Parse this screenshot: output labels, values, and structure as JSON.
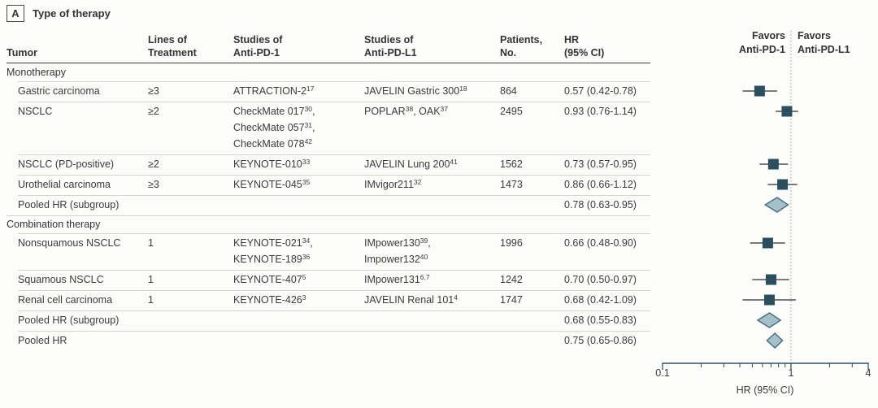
{
  "panel": {
    "label": "A",
    "title": "Type of therapy"
  },
  "table": {
    "headers": {
      "tumor": "Tumor",
      "lines_of_treatment": [
        "Lines of",
        "Treatment"
      ],
      "studies_pd1": [
        "Studies of",
        "Anti-PD-1"
      ],
      "studies_pdl1": [
        "Studies of",
        "Anti-PD-L1"
      ],
      "patients": [
        "Patients,",
        "No."
      ],
      "hr": [
        "HR",
        "(95% CI)"
      ]
    },
    "rows": [
      {
        "type": "section",
        "tumor": "Monotherapy"
      },
      {
        "type": "study",
        "tumor": "Gastric carcinoma",
        "treatment": "≥3",
        "studies_pd1": [
          [
            {
              "t": "ATTRACTION-2",
              "s": "17"
            }
          ]
        ],
        "studies_pdl1": [
          [
            {
              "t": "JAVELIN Gastric 300",
              "s": "18"
            }
          ]
        ],
        "patients": "864",
        "hr_text": "0.57 (0.42-0.78)",
        "hr": 0.57,
        "ci_low": 0.42,
        "ci_high": 0.78
      },
      {
        "type": "study",
        "tumor": "NSCLC",
        "treatment": "≥2",
        "studies_pd1": [
          [
            {
              "t": "CheckMate 017",
              "s": "30"
            },
            {
              "t": ","
            }
          ],
          [
            {
              "t": "CheckMate 057",
              "s": "31"
            },
            {
              "t": ","
            }
          ],
          [
            {
              "t": "CheckMate 078",
              "s": "42"
            }
          ]
        ],
        "studies_pdl1": [
          [
            {
              "t": "POPLAR",
              "s": "38"
            },
            {
              "t": ", "
            },
            {
              "t": "OAK",
              "s": "37"
            }
          ]
        ],
        "patients": "2495",
        "hr_text": "0.93 (0.76-1.14)",
        "hr": 0.93,
        "ci_low": 0.76,
        "ci_high": 1.14
      },
      {
        "type": "study",
        "tumor": "NSCLC (PD-positive)",
        "treatment": "≥2",
        "studies_pd1": [
          [
            {
              "t": "KEYNOTE-010",
              "s": "33"
            }
          ]
        ],
        "studies_pdl1": [
          [
            {
              "t": "JAVELIN Lung 200",
              "s": "41"
            }
          ]
        ],
        "patients": "1562",
        "hr_text": "0.73 (0.57-0.95)",
        "hr": 0.73,
        "ci_low": 0.57,
        "ci_high": 0.95
      },
      {
        "type": "study",
        "tumor": "Urothelial carcinoma",
        "treatment": "≥3",
        "studies_pd1": [
          [
            {
              "t": "KEYNOTE-045",
              "s": "35"
            }
          ]
        ],
        "studies_pdl1": [
          [
            {
              "t": "IMvigor211",
              "s": "32"
            }
          ]
        ],
        "patients": "1473",
        "hr_text": "0.86 (0.66-1.12)",
        "hr": 0.86,
        "ci_low": 0.66,
        "ci_high": 1.12
      },
      {
        "type": "pooled",
        "tumor": "Pooled HR (subgroup)",
        "hr_text": "0.78 (0.63-0.95)",
        "hr": 0.78,
        "ci_low": 0.63,
        "ci_high": 0.95
      },
      {
        "type": "section",
        "tumor": "Combination therapy"
      },
      {
        "type": "study",
        "tumor": "Nonsquamous NSCLC",
        "treatment": "1",
        "studies_pd1": [
          [
            {
              "t": "KEYNOTE-021",
              "s": "34"
            },
            {
              "t": ","
            }
          ],
          [
            {
              "t": "KEYNOTE-189",
              "s": "36"
            }
          ]
        ],
        "studies_pdl1": [
          [
            {
              "t": "IMpower130",
              "s": "39"
            },
            {
              "t": ","
            }
          ],
          [
            {
              "t": "Impower132",
              "s": "40"
            }
          ]
        ],
        "patients": "1996",
        "hr_text": "0.66 (0.48-0.90)",
        "hr": 0.66,
        "ci_low": 0.48,
        "ci_high": 0.9
      },
      {
        "type": "study",
        "tumor": "Squamous NSCLC",
        "treatment": "1",
        "studies_pd1": [
          [
            {
              "t": "KEYNOTE-407",
              "s": "5"
            }
          ]
        ],
        "studies_pdl1": [
          [
            {
              "t": "IMpower131",
              "s": "6,7"
            }
          ]
        ],
        "patients": "1242",
        "hr_text": "0.70 (0.50-0.97)",
        "hr": 0.7,
        "ci_low": 0.5,
        "ci_high": 0.97
      },
      {
        "type": "study",
        "tumor": "Renal cell carcinoma",
        "treatment": "1",
        "studies_pd1": [
          [
            {
              "t": "KEYNOTE-426",
              "s": "3"
            }
          ]
        ],
        "studies_pdl1": [
          [
            {
              "t": "JAVELIN Renal 101",
              "s": "4"
            }
          ]
        ],
        "patients": "1747",
        "hr_text": "0.68 (0.42-1.09)",
        "hr": 0.68,
        "ci_low": 0.42,
        "ci_high": 1.09
      },
      {
        "type": "pooled",
        "tumor": "Pooled HR (subgroup)",
        "hr_text": "0.68 (0.55-0.83)",
        "hr": 0.68,
        "ci_low": 0.55,
        "ci_high": 0.83
      },
      {
        "type": "pooled",
        "tumor": "Pooled HR",
        "hr_text": "0.75 (0.65-0.86)",
        "hr": 0.75,
        "ci_low": 0.65,
        "ci_high": 0.86
      }
    ]
  },
  "plot": {
    "favors_left": [
      "Favors",
      "Anti-PD-1"
    ],
    "favors_right": [
      "Favors",
      "Anti-PD-L1"
    ],
    "axis_label": "HR (95% CI)",
    "tick_labels": [
      "0.1",
      "1",
      "4"
    ]
  },
  "colors": {
    "square": "#2c4f5e",
    "ci_line": "#4f4f4f",
    "diamond_fill": "#a5c0cb",
    "diamond_stroke": "#49707f",
    "axis": "#2c5160",
    "reference_line": "#999999"
  },
  "chart_data": {
    "type": "scatter",
    "subtype": "forest-plot",
    "xscale": "log",
    "xlim": [
      0.1,
      4
    ],
    "x_ticks": [
      0.1,
      1,
      4
    ],
    "x_minor_ticks": [
      0.2,
      0.3,
      0.4,
      0.5,
      0.6,
      0.7,
      0.8,
      0.9,
      2,
      3
    ],
    "xlabel": "HR (95% CI)",
    "reference_line": 1,
    "left_region_label": "Favors Anti-PD-1",
    "right_region_label": "Favors Anti-PD-L1",
    "points": [
      {
        "label": "Gastric carcinoma",
        "hr": 0.57,
        "ci": [
          0.42,
          0.78
        ],
        "marker": "square",
        "patients": 864
      },
      {
        "label": "NSCLC",
        "hr": 0.93,
        "ci": [
          0.76,
          1.14
        ],
        "marker": "square",
        "patients": 2495
      },
      {
        "label": "NSCLC (PD-positive)",
        "hr": 0.73,
        "ci": [
          0.57,
          0.95
        ],
        "marker": "square",
        "patients": 1562
      },
      {
        "label": "Urothelial carcinoma",
        "hr": 0.86,
        "ci": [
          0.66,
          1.12
        ],
        "marker": "square",
        "patients": 1473
      },
      {
        "label": "Pooled HR (subgroup)",
        "hr": 0.78,
        "ci": [
          0.63,
          0.95
        ],
        "marker": "diamond"
      },
      {
        "label": "Nonsquamous NSCLC",
        "hr": 0.66,
        "ci": [
          0.48,
          0.9
        ],
        "marker": "square",
        "patients": 1996
      },
      {
        "label": "Squamous NSCLC",
        "hr": 0.7,
        "ci": [
          0.5,
          0.97
        ],
        "marker": "square",
        "patients": 1242
      },
      {
        "label": "Renal cell carcinoma",
        "hr": 0.68,
        "ci": [
          0.42,
          1.09
        ],
        "marker": "square",
        "patients": 1747
      },
      {
        "label": "Pooled HR (subgroup)",
        "hr": 0.68,
        "ci": [
          0.55,
          0.83
        ],
        "marker": "diamond"
      },
      {
        "label": "Pooled HR",
        "hr": 0.75,
        "ci": [
          0.65,
          0.86
        ],
        "marker": "diamond"
      }
    ]
  }
}
